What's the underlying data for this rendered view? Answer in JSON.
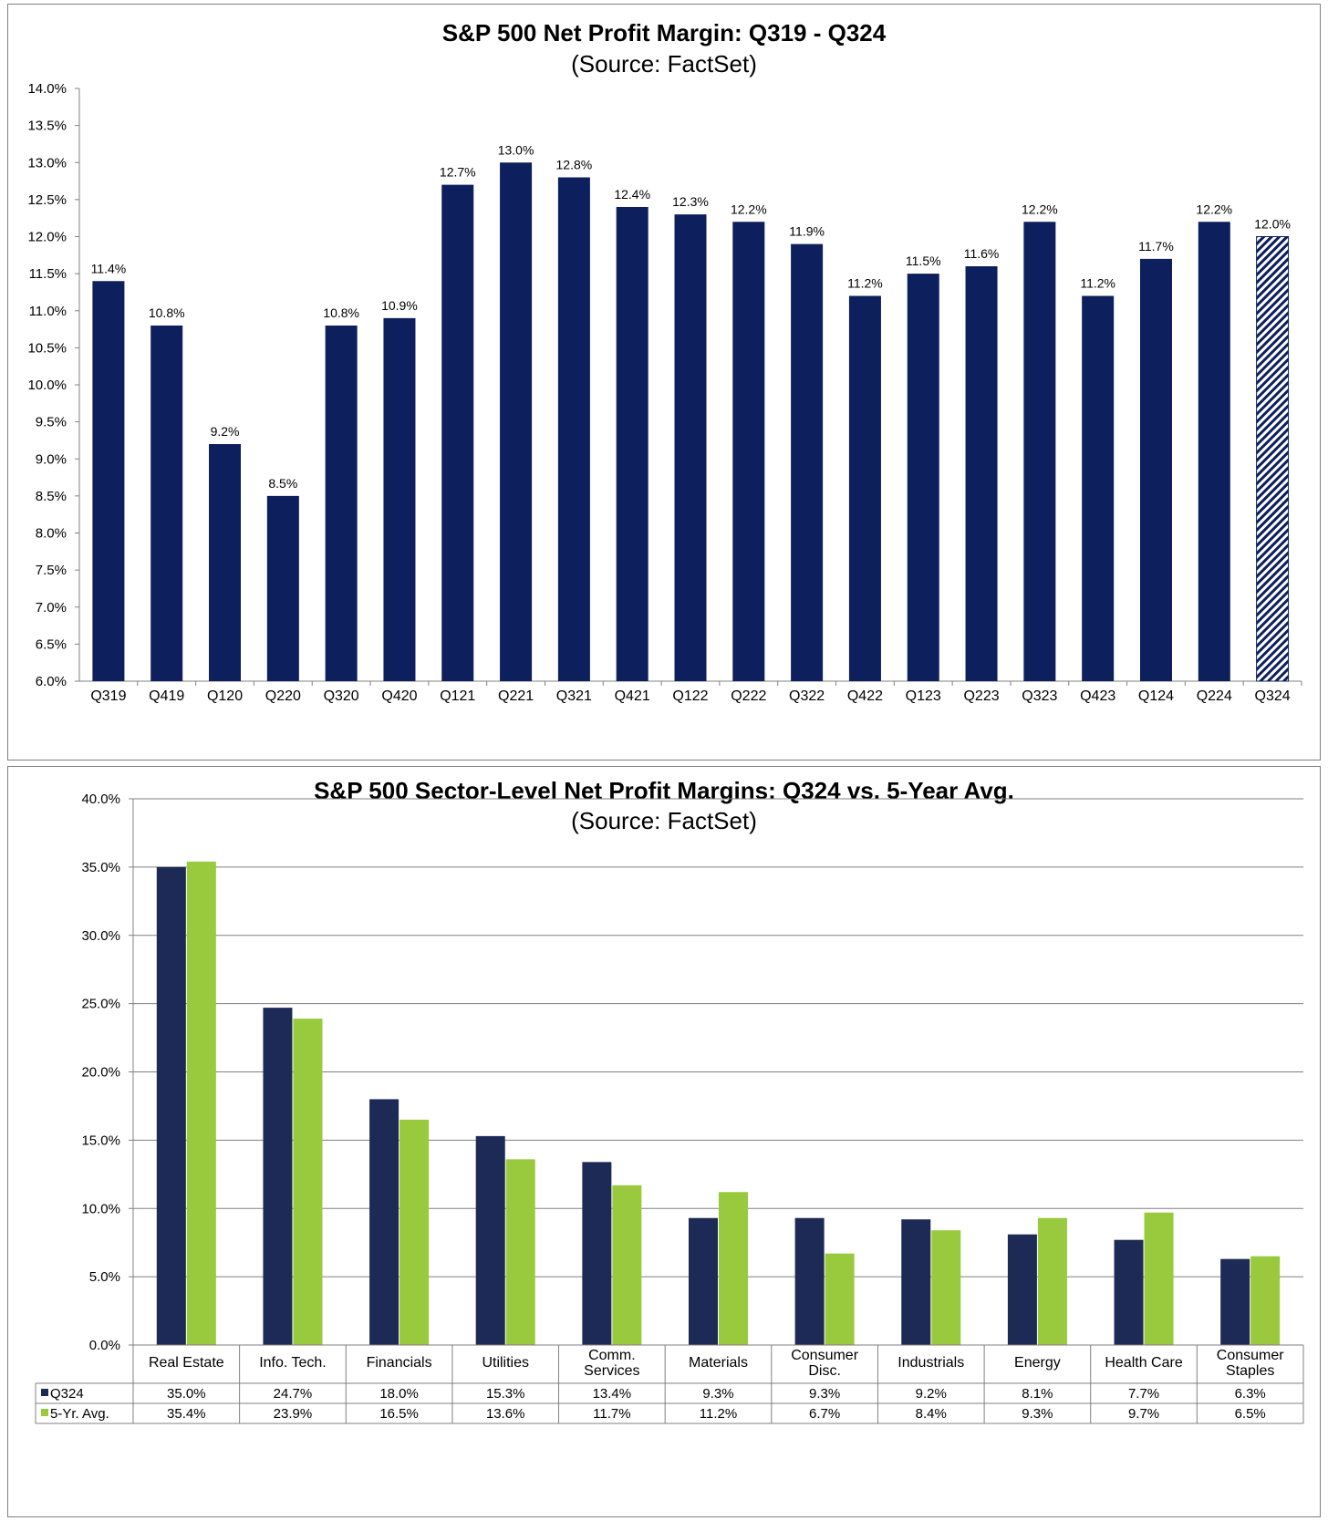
{
  "chart_data": [
    {
      "type": "bar",
      "title": "S&P 500 Net Profit Margin: Q319 - Q324",
      "subtitle": "(Source: FactSet)",
      "categories": [
        "Q319",
        "Q419",
        "Q120",
        "Q220",
        "Q320",
        "Q420",
        "Q121",
        "Q221",
        "Q321",
        "Q421",
        "Q122",
        "Q222",
        "Q322",
        "Q422",
        "Q123",
        "Q223",
        "Q323",
        "Q423",
        "Q124",
        "Q224",
        "Q324"
      ],
      "values": [
        11.4,
        10.8,
        9.2,
        8.5,
        10.8,
        10.9,
        12.7,
        13.0,
        12.8,
        12.4,
        12.3,
        12.2,
        11.9,
        11.2,
        11.5,
        11.6,
        12.2,
        11.2,
        11.7,
        12.2,
        12.0
      ],
      "data_labels": [
        "11.4%",
        "10.8%",
        "9.2%",
        "8.5%",
        "10.8%",
        "10.9%",
        "12.7%",
        "13.0%",
        "12.8%",
        "12.4%",
        "12.3%",
        "12.2%",
        "11.9%",
        "11.2%",
        "11.5%",
        "11.6%",
        "12.2%",
        "11.2%",
        "11.7%",
        "12.2%",
        "12.0%"
      ],
      "estimated_index": 20,
      "ylim": [
        6.0,
        14.0
      ],
      "yticks": [
        "6.0%",
        "6.5%",
        "7.0%",
        "7.5%",
        "8.0%",
        "8.5%",
        "9.0%",
        "9.5%",
        "10.0%",
        "10.5%",
        "11.0%",
        "11.5%",
        "12.0%",
        "12.5%",
        "13.0%",
        "13.5%",
        "14.0%"
      ],
      "grid": false,
      "colors": {
        "bar": "#0d1f5c",
        "estimate_hatch": "#0d1f5c"
      }
    },
    {
      "type": "bar",
      "title": "S&P 500 Sector-Level Net Profit Margins: Q324 vs. 5-Year Avg.",
      "subtitle": "(Source: FactSet)",
      "categories": [
        [
          "Real Estate"
        ],
        [
          "Info. Tech."
        ],
        [
          "Financials"
        ],
        [
          "Utilities"
        ],
        [
          "Comm.",
          "Services"
        ],
        [
          "Materials"
        ],
        [
          "Consumer",
          "Disc."
        ],
        [
          "Industrials"
        ],
        [
          "Energy"
        ],
        [
          "Health Care"
        ],
        [
          "Consumer",
          "Staples"
        ]
      ],
      "series": [
        {
          "name": "Q324",
          "color": "#1c2a55",
          "values": [
            35.0,
            24.7,
            18.0,
            15.3,
            13.4,
            9.3,
            9.3,
            9.2,
            8.1,
            7.7,
            6.3
          ],
          "labels": [
            "35.0%",
            "24.7%",
            "18.0%",
            "15.3%",
            "13.4%",
            "9.3%",
            "9.3%",
            "9.2%",
            "8.1%",
            "7.7%",
            "6.3%"
          ]
        },
        {
          "name": "5-Yr. Avg.",
          "color": "#99c93c",
          "values": [
            35.4,
            23.9,
            16.5,
            13.6,
            11.7,
            11.2,
            6.7,
            8.4,
            9.3,
            9.7,
            6.5
          ],
          "labels": [
            "35.4%",
            "23.9%",
            "16.5%",
            "13.6%",
            "11.7%",
            "11.2%",
            "6.7%",
            "8.4%",
            "9.3%",
            "9.7%",
            "6.5%"
          ]
        }
      ],
      "ylim": [
        0.0,
        40.0
      ],
      "yticks": [
        "0.0%",
        "5.0%",
        "10.0%",
        "15.0%",
        "20.0%",
        "25.0%",
        "30.0%",
        "35.0%",
        "40.0%"
      ],
      "grid": true,
      "legend": "data-table"
    }
  ]
}
